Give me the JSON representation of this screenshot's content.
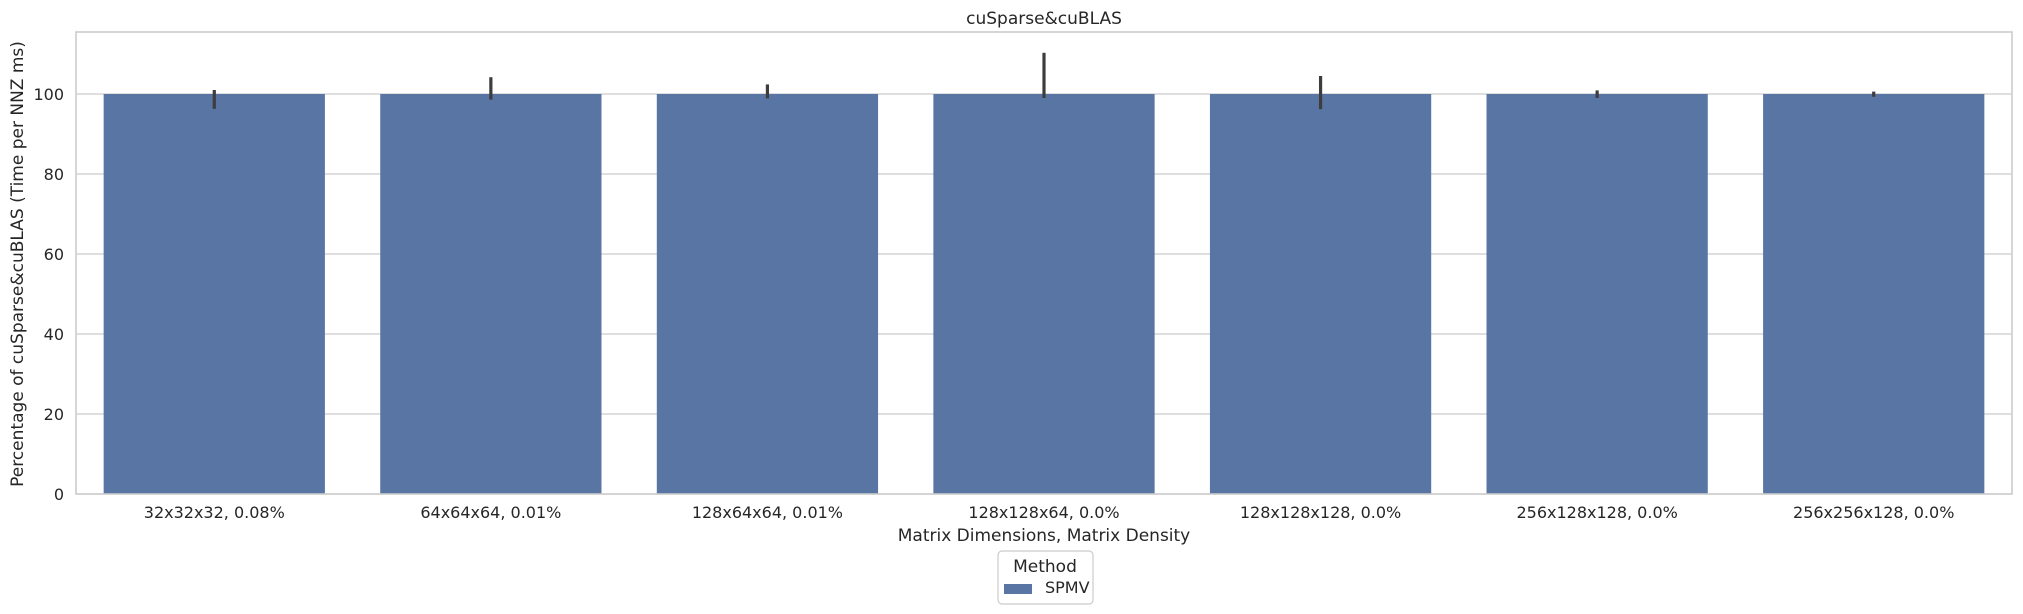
{
  "chart_data": {
    "type": "bar",
    "title": "cuSparse&cuBLAS",
    "xlabel": "Matrix Dimensions, Matrix Density",
    "ylabel": "Percentage of cuSparse&cuBLAS (Time per NNZ ms)",
    "categories": [
      "32x32x32, 0.08%",
      "64x64x64, 0.01%",
      "128x64x64, 0.01%",
      "128x128x64, 0.0%",
      "128x128x128, 0.0%",
      "256x128x128, 0.0%",
      "256x256x128, 0.0%"
    ],
    "series": [
      {
        "name": "SPMV",
        "values": [
          100,
          100,
          100,
          100,
          100,
          100,
          100
        ],
        "error_low": [
          96.3,
          98.6,
          98.9,
          99.0,
          96.2,
          99.0,
          99.3
        ],
        "error_high": [
          101.0,
          104.2,
          102.4,
          110.3,
          104.5,
          100.9,
          100.6
        ],
        "color": "#5975a4"
      }
    ],
    "yticks": [
      0,
      20,
      40,
      60,
      80,
      100
    ],
    "ylim": [
      0,
      115.5
    ],
    "grid": true,
    "legend": {
      "title": "Method",
      "placement": "bottom-center"
    }
  }
}
